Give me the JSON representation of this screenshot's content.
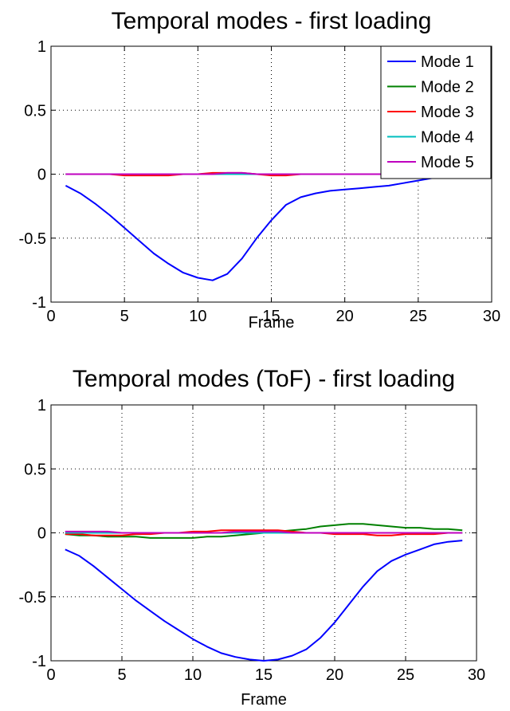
{
  "chart_data": [
    {
      "type": "line",
      "title": "Temporal modes - first loading",
      "xlabel": "Frame",
      "ylabel": "",
      "xlim": [
        0,
        30
      ],
      "ylim": [
        -1,
        1
      ],
      "xticks": [
        "0",
        "5",
        "10",
        "15",
        "20",
        "25",
        "30"
      ],
      "yticks": [
        "1",
        "0.5",
        "0",
        "-0.5",
        "-1"
      ],
      "grid": true,
      "legend_position": "top-right",
      "x": [
        1,
        2,
        3,
        4,
        5,
        6,
        7,
        8,
        9,
        10,
        11,
        12,
        13,
        14,
        15,
        16,
        17,
        18,
        19,
        20,
        21,
        22,
        23,
        24,
        25,
        26,
        27,
        28,
        29
      ],
      "series": [
        {
          "name": "Mode 1",
          "color": "#0000ff",
          "values": [
            -0.09,
            -0.15,
            -0.23,
            -0.32,
            -0.42,
            -0.52,
            -0.62,
            -0.7,
            -0.77,
            -0.81,
            -0.83,
            -0.78,
            -0.66,
            -0.5,
            -0.36,
            -0.24,
            -0.18,
            -0.15,
            -0.13,
            -0.12,
            -0.11,
            -0.1,
            -0.09,
            -0.07,
            -0.05,
            -0.03,
            -0.02,
            -0.01,
            -0.01
          ]
        },
        {
          "name": "Mode 2",
          "color": "#008000",
          "values": [
            0.0,
            0.0,
            0.0,
            0.0,
            0.0,
            0.0,
            0.0,
            0.0,
            0.0,
            0.0,
            0.0,
            0.0,
            0.0,
            0.0,
            0.0,
            0.0,
            0.0,
            0.0,
            0.0,
            0.0,
            0.0,
            0.0,
            0.0,
            0.0,
            0.0,
            0.0,
            0.0,
            0.0,
            0.0
          ]
        },
        {
          "name": "Mode 3",
          "color": "#ff0000",
          "values": [
            0.0,
            0.0,
            0.0,
            0.0,
            -0.01,
            -0.01,
            -0.01,
            -0.01,
            0.0,
            0.0,
            0.01,
            0.01,
            0.01,
            0.0,
            -0.01,
            -0.01,
            0.0,
            0.0,
            0.0,
            0.0,
            0.0,
            0.0,
            0.0,
            0.0,
            0.0,
            0.0,
            0.0,
            0.0,
            0.0
          ]
        },
        {
          "name": "Mode 4",
          "color": "#00bfbf",
          "values": [
            0.0,
            0.0,
            0.0,
            0.0,
            0.0,
            0.0,
            0.0,
            0.0,
            0.0,
            0.0,
            0.0,
            0.0,
            0.0,
            0.0,
            0.0,
            0.0,
            0.0,
            0.0,
            0.0,
            0.0,
            0.0,
            0.0,
            0.0,
            0.0,
            0.0,
            0.0,
            0.0,
            0.0,
            0.0
          ]
        },
        {
          "name": "Mode 5",
          "color": "#bf00bf",
          "values": [
            0.0,
            0.0,
            0.0,
            0.0,
            0.0,
            0.0,
            0.0,
            0.0,
            0.0,
            0.0,
            0.0,
            0.01,
            0.01,
            0.0,
            0.0,
            0.0,
            0.0,
            0.0,
            0.0,
            0.0,
            0.0,
            0.0,
            0.0,
            0.0,
            0.0,
            0.0,
            0.0,
            0.0,
            0.0
          ]
        }
      ]
    },
    {
      "type": "line",
      "title": "Temporal modes (ToF) - first loading",
      "xlabel": "Frame",
      "ylabel": "",
      "xlim": [
        0,
        30
      ],
      "ylim": [
        -1,
        1
      ],
      "xticks": [
        "0",
        "5",
        "10",
        "15",
        "20",
        "25",
        "30"
      ],
      "yticks": [
        "1",
        "0.5",
        "0",
        "-0.5",
        "-1"
      ],
      "grid": true,
      "x": [
        1,
        2,
        3,
        4,
        5,
        6,
        7,
        8,
        9,
        10,
        11,
        12,
        13,
        14,
        15,
        16,
        17,
        18,
        19,
        20,
        21,
        22,
        23,
        24,
        25,
        26,
        27,
        28,
        29
      ],
      "series": [
        {
          "color": "#0000ff",
          "values": [
            -0.13,
            -0.18,
            -0.26,
            -0.35,
            -0.44,
            -0.53,
            -0.61,
            -0.69,
            -0.76,
            -0.83,
            -0.89,
            -0.94,
            -0.97,
            -0.99,
            -1.0,
            -0.99,
            -0.96,
            -0.91,
            -0.82,
            -0.7,
            -0.56,
            -0.42,
            -0.3,
            -0.22,
            -0.17,
            -0.13,
            -0.09,
            -0.07,
            -0.06
          ]
        },
        {
          "color": "#008000",
          "values": [
            -0.01,
            -0.02,
            -0.02,
            -0.03,
            -0.03,
            -0.03,
            -0.04,
            -0.04,
            -0.04,
            -0.04,
            -0.03,
            -0.03,
            -0.02,
            -0.01,
            0.0,
            0.01,
            0.02,
            0.03,
            0.05,
            0.06,
            0.07,
            0.07,
            0.06,
            0.05,
            0.04,
            0.04,
            0.03,
            0.03,
            0.02
          ]
        },
        {
          "color": "#ff0000",
          "values": [
            -0.01,
            -0.01,
            -0.02,
            -0.02,
            -0.02,
            -0.01,
            -0.01,
            0.0,
            0.0,
            0.01,
            0.01,
            0.02,
            0.02,
            0.02,
            0.02,
            0.02,
            0.01,
            0.0,
            0.0,
            -0.01,
            -0.01,
            -0.01,
            -0.02,
            -0.02,
            -0.01,
            -0.01,
            -0.01,
            0.0,
            0.0
          ]
        },
        {
          "color": "#00bfbf",
          "values": [
            0.0,
            0.0,
            0.0,
            0.0,
            0.0,
            0.0,
            0.0,
            0.0,
            0.0,
            0.0,
            0.0,
            0.0,
            0.0,
            0.0,
            0.0,
            0.0,
            0.0,
            0.0,
            0.0,
            0.0,
            0.0,
            0.0,
            0.0,
            0.0,
            0.0,
            0.0,
            0.0,
            0.0,
            0.0
          ]
        },
        {
          "color": "#bf00bf",
          "values": [
            0.01,
            0.01,
            0.01,
            0.01,
            0.0,
            0.0,
            0.0,
            0.0,
            0.0,
            0.0,
            0.0,
            0.0,
            0.01,
            0.01,
            0.01,
            0.01,
            0.0,
            0.0,
            0.0,
            0.0,
            0.0,
            0.0,
            0.0,
            0.0,
            0.0,
            0.0,
            0.0,
            0.0,
            0.0
          ]
        }
      ]
    }
  ]
}
